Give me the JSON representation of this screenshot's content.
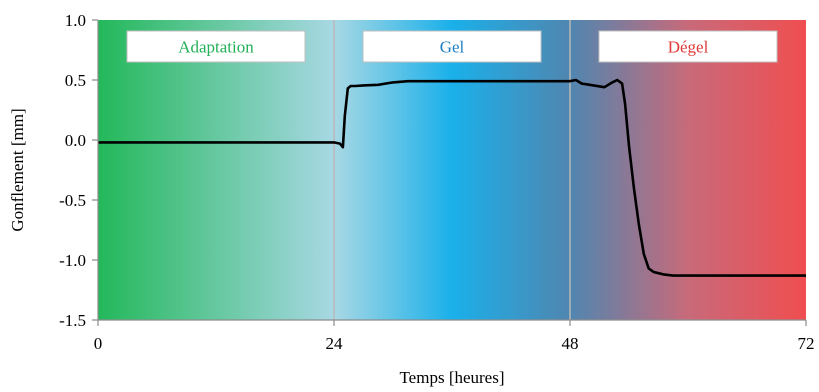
{
  "chart_data": {
    "type": "line",
    "title": "",
    "xlabel": "Temps [heures]",
    "ylabel": "Gonflement [mm]",
    "xlim": [
      0,
      72
    ],
    "ylim": [
      -1.5,
      1.0
    ],
    "xticks": [
      0,
      24,
      48,
      72
    ],
    "xtick_labels": [
      "0",
      "24",
      "48",
      "72"
    ],
    "yticks": [
      1.0,
      0.5,
      0.0,
      -0.5,
      -1.0,
      -1.5
    ],
    "ytick_labels": [
      "1.0",
      "0.5",
      "0.0",
      "-0.5",
      "-1.0",
      "-1.5"
    ],
    "grid": "vertical",
    "line_color": "#000000",
    "phases": [
      {
        "label": "Adaptation",
        "start": 0,
        "end": 24,
        "color": "#22b058"
      },
      {
        "label": "Gel",
        "start": 24,
        "end": 48,
        "color": "#1e7ec0"
      },
      {
        "label": "Dégel",
        "start": 48,
        "end": 72,
        "color": "#e03a3a"
      }
    ],
    "background_gradient": [
      {
        "x": 0,
        "color": "#23b85a"
      },
      {
        "x": 24,
        "color": "#a8d8e4"
      },
      {
        "x": 36,
        "color": "#1ab0ea"
      },
      {
        "x": 48,
        "color": "#5086b0"
      },
      {
        "x": 60,
        "color": "#c86a7a"
      },
      {
        "x": 72,
        "color": "#f04e50"
      }
    ],
    "series": [
      {
        "x": [
          0,
          3,
          10,
          20,
          24.0,
          24.6,
          24.9,
          25.1,
          25.4,
          25.7,
          26.2,
          27,
          28.5,
          30,
          31.5,
          34,
          40,
          45,
          48,
          48.6,
          49.2,
          50,
          51.5,
          52.3,
          52.8,
          53.3,
          53.6,
          54.0,
          54.5,
          55.0,
          55.5,
          56.0,
          56.5,
          57.0,
          57.5,
          58.5,
          60,
          65,
          70,
          72
        ],
        "y": [
          -0.02,
          -0.02,
          -0.02,
          -0.02,
          -0.02,
          -0.03,
          -0.06,
          0.2,
          0.43,
          0.45,
          0.45,
          0.455,
          0.46,
          0.48,
          0.49,
          0.49,
          0.49,
          0.49,
          0.49,
          0.5,
          0.47,
          0.46,
          0.44,
          0.48,
          0.5,
          0.47,
          0.3,
          -0.05,
          -0.4,
          -0.7,
          -0.95,
          -1.07,
          -1.1,
          -1.11,
          -1.12,
          -1.13,
          -1.13,
          -1.13,
          -1.13,
          -1.13
        ]
      }
    ]
  }
}
